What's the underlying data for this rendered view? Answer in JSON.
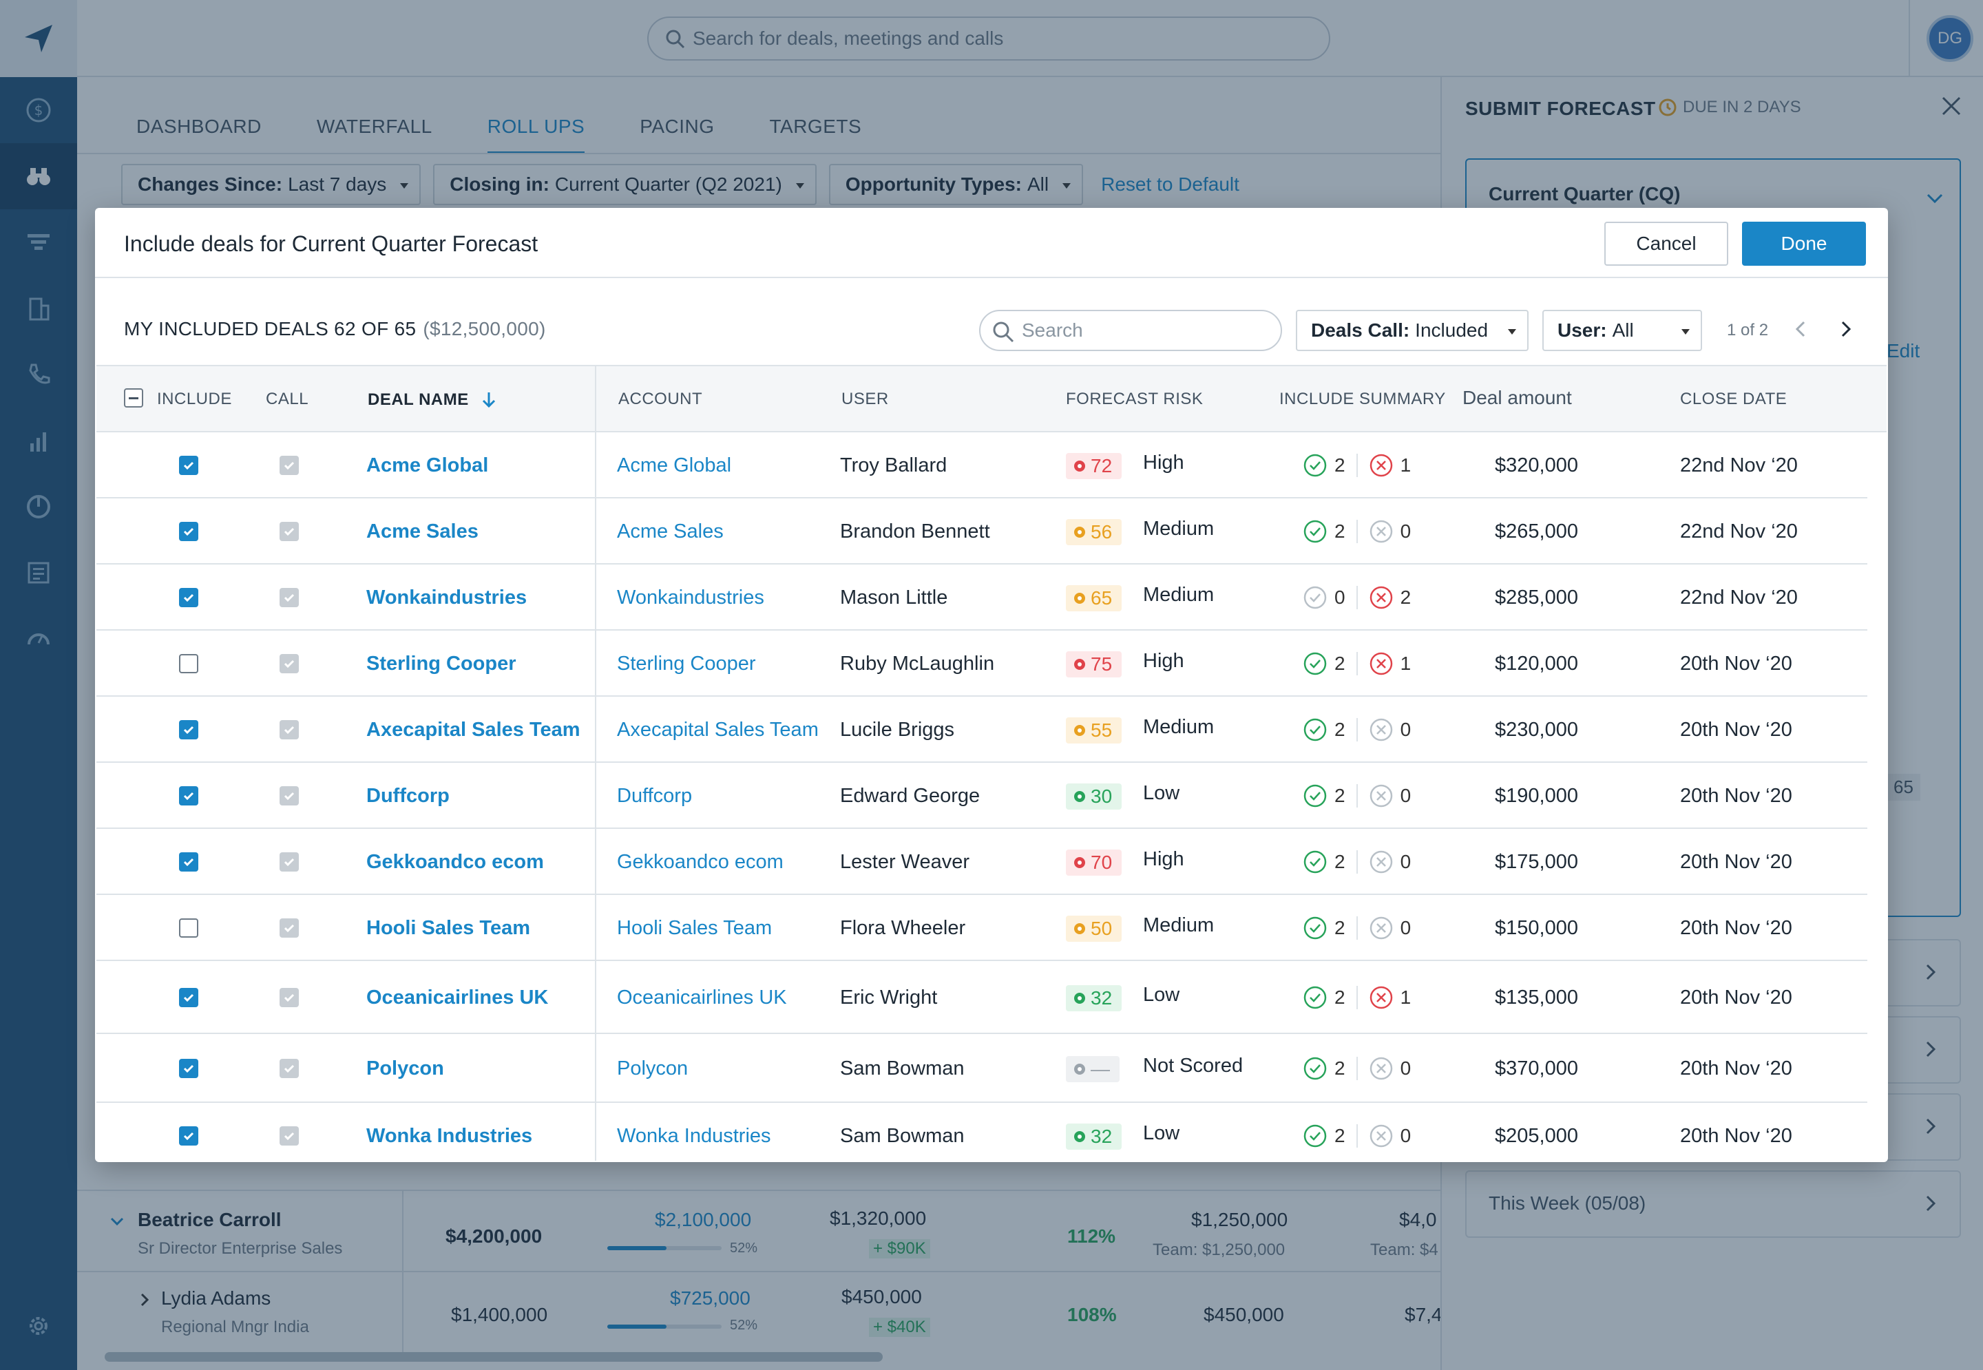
{
  "app": {
    "search_placeholder": "Search for deals, meetings and calls",
    "avatar_initials": "DG",
    "accent_color": "#1a86c7"
  },
  "tabs": [
    "DASHBOARD",
    "WATERFALL",
    "ROLL UPS",
    "PACING",
    "TARGETS"
  ],
  "active_tab": "ROLL UPS",
  "filters": {
    "changes_label": "Changes Since:",
    "changes_value": "Last 7 days",
    "closing_label": "Closing in:",
    "closing_value": "Current Quarter (Q2 2021)",
    "opp_label": "Opportunity Types:",
    "opp_value": "All",
    "reset": "Reset to Default"
  },
  "background_rows": [
    {
      "name": "Beatrice Carroll",
      "title": "Sr Director Enterprise Sales",
      "quota": "$4,200,000",
      "booked": "$2,100,000",
      "booked_pct": "52%",
      "booked_fill": 0.52,
      "commit": "$1,320,000",
      "commit_delta": "+ $90K",
      "attain": "112%",
      "forecast": "$1,250,000",
      "forecast_team": "Team: $1,250,000",
      "extra": "$4,0",
      "extra_team": "Team: $4"
    },
    {
      "name": "Lydia Adams",
      "title": "Regional Mngr India",
      "quota": "$1,400,000",
      "booked": "$725,000",
      "booked_pct": "52%",
      "booked_fill": 0.52,
      "commit": "$450,000",
      "commit_delta": "+ $40K",
      "attain": "108%",
      "forecast": "$450,000",
      "extra": "$7,4"
    }
  ],
  "right_panel": {
    "title": "SUBMIT FORECAST",
    "due": "DUE IN 2 DAYS",
    "period": "Current Quarter (CQ)",
    "edit": "Edit",
    "count": "65",
    "this_week": "This Week (05/08)"
  },
  "modal": {
    "title": "Include deals for Current Quarter Forecast",
    "cancel": "Cancel",
    "done": "Done",
    "subtitle": "MY INCLUDED DEALS 62 OF 65",
    "subtitle_amount": "($12,500,000)",
    "search_placeholder": "Search",
    "deals_call_label": "Deals Call:",
    "deals_call_value": "Included",
    "user_label": "User:",
    "user_value": "All",
    "pager": "1 of 2",
    "columns": {
      "include": "INCLUDE",
      "call": "CALL",
      "deal_name": "DEAL NAME",
      "account": "ACCOUNT",
      "user": "USER",
      "forecast_risk": "FORECAST RISK",
      "include_summary": "INCLUDE SUMMARY",
      "deal_amount": "Deal amount",
      "close_date": "CLOSE DATE"
    },
    "rows": [
      {
        "included": true,
        "deal": "Acme Global",
        "account": "Acme Global",
        "user": "Troy Ballard",
        "score": "72",
        "risk": "High",
        "yes": "2",
        "no": "1",
        "yes_on": true,
        "no_on": true,
        "amount": "$320,000",
        "date": "22nd Nov ‘20"
      },
      {
        "included": true,
        "deal": "Acme Sales",
        "account": "Acme Sales",
        "user": "Brandon Bennett",
        "score": "56",
        "risk": "Medium",
        "yes": "2",
        "no": "0",
        "yes_on": true,
        "no_on": false,
        "amount": "$265,000",
        "date": "22nd Nov ‘20"
      },
      {
        "included": true,
        "deal": "Wonkaindustries",
        "account": "Wonkaindustries",
        "user": "Mason Little",
        "score": "65",
        "risk": "Medium",
        "yes": "0",
        "no": "2",
        "yes_on": false,
        "no_on": true,
        "amount": "$285,000",
        "date": "22nd Nov ‘20"
      },
      {
        "included": false,
        "deal": "Sterling Cooper",
        "account": "Sterling Cooper",
        "user": "Ruby McLaughlin",
        "score": "75",
        "risk": "High",
        "yes": "2",
        "no": "1",
        "yes_on": true,
        "no_on": true,
        "amount": "$120,000",
        "date": "20th Nov ‘20"
      },
      {
        "included": true,
        "deal": "Axecapital Sales Team",
        "account": "Axecapital Sales Team",
        "user": "Lucile Briggs",
        "score": "55",
        "risk": "Medium",
        "yes": "2",
        "no": "0",
        "yes_on": true,
        "no_on": false,
        "amount": "$230,000",
        "date": "20th Nov ‘20"
      },
      {
        "included": true,
        "deal": "Duffcorp",
        "account": "Duffcorp",
        "user": "Edward George",
        "score": "30",
        "risk": "Low",
        "yes": "2",
        "no": "0",
        "yes_on": true,
        "no_on": false,
        "amount": "$190,000",
        "date": "20th Nov ‘20"
      },
      {
        "included": true,
        "deal": "Gekkoandco ecom",
        "account": "Gekkoandco ecom",
        "user": "Lester Weaver",
        "score": "70",
        "risk": "High",
        "yes": "2",
        "no": "0",
        "yes_on": true,
        "no_on": false,
        "amount": "$175,000",
        "date": "20th Nov ‘20"
      },
      {
        "included": false,
        "deal": "Hooli Sales Team",
        "account": "Hooli Sales Team",
        "user": "Flora Wheeler",
        "score": "50",
        "risk": "Medium",
        "yes": "2",
        "no": "0",
        "yes_on": true,
        "no_on": false,
        "amount": "$150,000",
        "date": "20th Nov ‘20"
      },
      {
        "included": true,
        "deal": "Oceanicairlines UK",
        "account": "Oceanicairlines UK",
        "user": "Eric Wright",
        "score": "32",
        "risk": "Low",
        "yes": "2",
        "no": "1",
        "yes_on": true,
        "no_on": true,
        "amount": "$135,000",
        "date": "20th Nov ‘20"
      },
      {
        "included": true,
        "deal": "Polycon",
        "account": "Polycon",
        "user": "Sam Bowman",
        "score": "—",
        "risk": "Not Scored",
        "yes": "2",
        "no": "0",
        "yes_on": true,
        "no_on": false,
        "amount": "$370,000",
        "date": "20th Nov ‘20"
      },
      {
        "included": true,
        "deal": "Wonka Industries",
        "account": "Wonka Industries",
        "user": "Sam Bowman",
        "score": "32",
        "risk": "Low",
        "yes": "2",
        "no": "0",
        "yes_on": true,
        "no_on": false,
        "amount": "$205,000",
        "date": "20th Nov ‘20"
      }
    ],
    "risk_colors": {
      "High": {
        "text": "#e0434a",
        "bg": "#fde8e9"
      },
      "Medium": {
        "text": "#e8a020",
        "bg": "#fdf1dc"
      },
      "Low": {
        "text": "#27a35a",
        "bg": "#e3f5ea"
      },
      "Not Scored": {
        "text": "#9aa3ab",
        "bg": "#eef0f2"
      }
    }
  }
}
